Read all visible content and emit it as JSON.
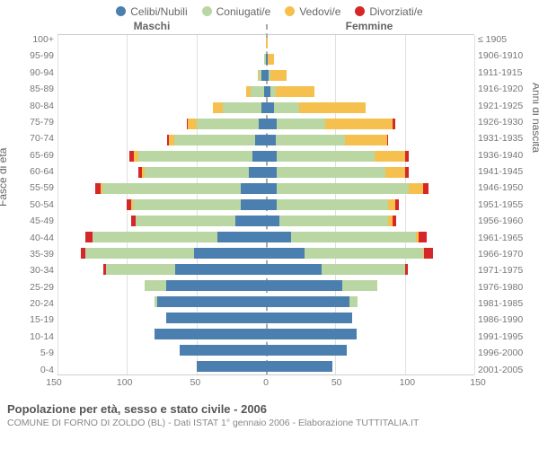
{
  "chart": {
    "type": "population-pyramid",
    "title": "Popolazione per età, sesso e stato civile - 2006",
    "subtitle": "COMUNE DI FORNO DI ZOLDO (BL) - Dati ISTAT 1° gennaio 2006 - Elaborazione TUTTITALIA.IT",
    "left_header": "Maschi",
    "right_header": "Femmine",
    "y_label_left": "Fasce di età",
    "y_label_right": "Anni di nascita",
    "x_max": 150,
    "x_ticks": [
      150,
      100,
      50,
      0,
      50,
      100,
      150
    ],
    "colors": {
      "single": "#4a7fb0",
      "married": "#b9d6a3",
      "widowed": "#f5c04e",
      "divorced": "#d62728",
      "grid": "#e0e0e0",
      "text": "#666666"
    },
    "legend": [
      {
        "key": "single",
        "label": "Celibi/Nubili"
      },
      {
        "key": "married",
        "label": "Coniugati/e"
      },
      {
        "key": "widowed",
        "label": "Vedovi/e"
      },
      {
        "key": "divorced",
        "label": "Divorziati/e"
      }
    ],
    "rows": [
      {
        "age": "100+",
        "birth": "≤ 1905",
        "m": {
          "single": 0,
          "married": 0,
          "widowed": 0,
          "divorced": 0
        },
        "f": {
          "single": 0,
          "married": 0,
          "widowed": 1,
          "divorced": 0
        }
      },
      {
        "age": "95-99",
        "birth": "1906-1910",
        "m": {
          "single": 0,
          "married": 1,
          "widowed": 0,
          "divorced": 0
        },
        "f": {
          "single": 1,
          "married": 0,
          "widowed": 5,
          "divorced": 0
        }
      },
      {
        "age": "90-94",
        "birth": "1911-1915",
        "m": {
          "single": 3,
          "married": 2,
          "widowed": 1,
          "divorced": 0
        },
        "f": {
          "single": 2,
          "married": 1,
          "widowed": 12,
          "divorced": 0
        }
      },
      {
        "age": "85-89",
        "birth": "1916-1920",
        "m": {
          "single": 1,
          "married": 10,
          "widowed": 3,
          "divorced": 0
        },
        "f": {
          "single": 3,
          "married": 4,
          "widowed": 28,
          "divorced": 0
        }
      },
      {
        "age": "80-84",
        "birth": "1921-1925",
        "m": {
          "single": 3,
          "married": 28,
          "widowed": 7,
          "divorced": 0
        },
        "f": {
          "single": 6,
          "married": 18,
          "widowed": 48,
          "divorced": 0
        }
      },
      {
        "age": "75-79",
        "birth": "1926-1930",
        "m": {
          "single": 5,
          "married": 45,
          "widowed": 6,
          "divorced": 1
        },
        "f": {
          "single": 8,
          "married": 35,
          "widowed": 48,
          "divorced": 2
        }
      },
      {
        "age": "70-74",
        "birth": "1931-1935",
        "m": {
          "single": 8,
          "married": 58,
          "widowed": 4,
          "divorced": 1
        },
        "f": {
          "single": 7,
          "married": 50,
          "widowed": 30,
          "divorced": 1
        }
      },
      {
        "age": "65-69",
        "birth": "1936-1940",
        "m": {
          "single": 10,
          "married": 82,
          "widowed": 3,
          "divorced": 3
        },
        "f": {
          "single": 8,
          "married": 70,
          "widowed": 22,
          "divorced": 3
        }
      },
      {
        "age": "60-64",
        "birth": "1941-1945",
        "m": {
          "single": 12,
          "married": 75,
          "widowed": 2,
          "divorced": 3
        },
        "f": {
          "single": 8,
          "married": 78,
          "widowed": 14,
          "divorced": 3
        }
      },
      {
        "age": "55-59",
        "birth": "1946-1950",
        "m": {
          "single": 18,
          "married": 100,
          "widowed": 1,
          "divorced": 4
        },
        "f": {
          "single": 8,
          "married": 95,
          "widowed": 10,
          "divorced": 4
        }
      },
      {
        "age": "50-54",
        "birth": "1951-1955",
        "m": {
          "single": 18,
          "married": 78,
          "widowed": 1,
          "divorced": 3
        },
        "f": {
          "single": 8,
          "married": 80,
          "widowed": 5,
          "divorced": 3
        }
      },
      {
        "age": "45-49",
        "birth": "1956-1960",
        "m": {
          "single": 22,
          "married": 72,
          "widowed": 0,
          "divorced": 3
        },
        "f": {
          "single": 10,
          "married": 78,
          "widowed": 3,
          "divorced": 3
        }
      },
      {
        "age": "40-44",
        "birth": "1961-1965",
        "m": {
          "single": 35,
          "married": 90,
          "widowed": 0,
          "divorced": 5
        },
        "f": {
          "single": 18,
          "married": 90,
          "widowed": 2,
          "divorced": 6
        }
      },
      {
        "age": "35-39",
        "birth": "1966-1970",
        "m": {
          "single": 52,
          "married": 78,
          "widowed": 0,
          "divorced": 3
        },
        "f": {
          "single": 28,
          "married": 85,
          "widowed": 1,
          "divorced": 6
        }
      },
      {
        "age": "30-34",
        "birth": "1971-1975",
        "m": {
          "single": 65,
          "married": 50,
          "widowed": 0,
          "divorced": 2
        },
        "f": {
          "single": 40,
          "married": 60,
          "widowed": 0,
          "divorced": 2
        }
      },
      {
        "age": "25-29",
        "birth": "1976-1980",
        "m": {
          "single": 72,
          "married": 15,
          "widowed": 0,
          "divorced": 0
        },
        "f": {
          "single": 55,
          "married": 25,
          "widowed": 0,
          "divorced": 0
        }
      },
      {
        "age": "20-24",
        "birth": "1981-1985",
        "m": {
          "single": 78,
          "married": 2,
          "widowed": 0,
          "divorced": 0
        },
        "f": {
          "single": 60,
          "married": 6,
          "widowed": 0,
          "divorced": 0
        }
      },
      {
        "age": "15-19",
        "birth": "1986-1990",
        "m": {
          "single": 72,
          "married": 0,
          "widowed": 0,
          "divorced": 0
        },
        "f": {
          "single": 62,
          "married": 0,
          "widowed": 0,
          "divorced": 0
        }
      },
      {
        "age": "10-14",
        "birth": "1991-1995",
        "m": {
          "single": 80,
          "married": 0,
          "widowed": 0,
          "divorced": 0
        },
        "f": {
          "single": 65,
          "married": 0,
          "widowed": 0,
          "divorced": 0
        }
      },
      {
        "age": "5-9",
        "birth": "1996-2000",
        "m": {
          "single": 62,
          "married": 0,
          "widowed": 0,
          "divorced": 0
        },
        "f": {
          "single": 58,
          "married": 0,
          "widowed": 0,
          "divorced": 0
        }
      },
      {
        "age": "0-4",
        "birth": "2001-2005",
        "m": {
          "single": 50,
          "married": 0,
          "widowed": 0,
          "divorced": 0
        },
        "f": {
          "single": 48,
          "married": 0,
          "widowed": 0,
          "divorced": 0
        }
      }
    ]
  }
}
